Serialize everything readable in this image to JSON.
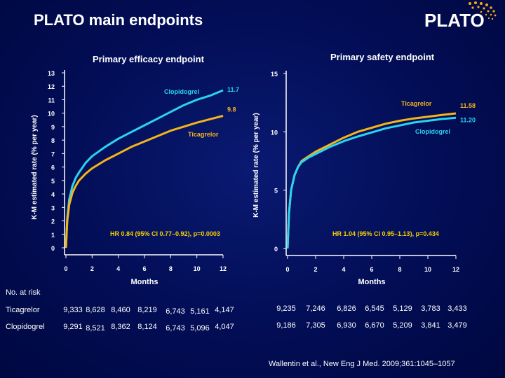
{
  "slide": {
    "title": "PLATO main endpoints",
    "logo_text": "PLATO",
    "citation": "Wallentin et al., New Eng J Med. 2009;361:1045–1057"
  },
  "colors": {
    "ticagrelor": "#f4b41a",
    "clopidogrel": "#2ad4f0",
    "hr_text": "#f4d000",
    "logo_dots": "#f4a81a"
  },
  "chart_data": [
    {
      "type": "line",
      "title": "Primary efficacy endpoint",
      "xlabel": "Months",
      "ylabel": "K-M estimated rate  (% per year)",
      "xlim": [
        0,
        12
      ],
      "ylim": [
        0,
        13
      ],
      "xticks": [
        0,
        2,
        4,
        6,
        8,
        10,
        12
      ],
      "yticks": [
        0,
        1,
        2,
        3,
        4,
        5,
        6,
        7,
        8,
        9,
        10,
        11,
        12,
        13
      ],
      "grid": false,
      "annotation": "HR 0.84 (95% CI 0.77–0.92), p=0.0003",
      "series": [
        {
          "name": "Clopidogrel",
          "end_label": "11.7",
          "color": "#2ad4f0",
          "x": [
            0,
            0.1,
            0.25,
            0.5,
            0.75,
            1,
            1.5,
            2,
            3,
            4,
            5,
            6,
            7,
            8,
            9,
            10,
            11,
            12
          ],
          "y": [
            0,
            2.2,
            3.6,
            4.6,
            5.2,
            5.6,
            6.3,
            6.8,
            7.5,
            8.1,
            8.6,
            9.1,
            9.6,
            10.1,
            10.6,
            11.0,
            11.3,
            11.7
          ]
        },
        {
          "name": "Ticagrelor",
          "end_label": "9.8",
          "color": "#f4b41a",
          "x": [
            0,
            0.1,
            0.25,
            0.5,
            0.75,
            1,
            1.5,
            2,
            3,
            4,
            5,
            6,
            7,
            8,
            9,
            10,
            11,
            12
          ],
          "y": [
            0,
            2.0,
            3.2,
            4.1,
            4.6,
            5.0,
            5.5,
            5.9,
            6.5,
            7.0,
            7.5,
            7.9,
            8.3,
            8.7,
            9.0,
            9.3,
            9.55,
            9.8
          ]
        }
      ]
    },
    {
      "type": "line",
      "title": "Primary safety endpoint",
      "xlabel": "Months",
      "ylabel": "K-M estimated rate  (% per year)",
      "xlim": [
        0,
        12
      ],
      "ylim": [
        0,
        15
      ],
      "xticks": [
        0,
        2,
        4,
        6,
        8,
        10,
        12
      ],
      "yticks": [
        0,
        5,
        10,
        15
      ],
      "grid": false,
      "annotation": "HR 1.04 (95% CI 0.95–1.13), p=0.434",
      "series": [
        {
          "name": "Ticagrelor",
          "end_label": "11.58",
          "color": "#f4b41a",
          "x": [
            0,
            0.1,
            0.25,
            0.5,
            0.75,
            1,
            1.5,
            2,
            3,
            4,
            5,
            6,
            7,
            8,
            9,
            10,
            11,
            12
          ],
          "y": [
            0,
            3.0,
            5.0,
            6.3,
            7.0,
            7.5,
            7.9,
            8.3,
            8.9,
            9.5,
            10.0,
            10.35,
            10.7,
            10.95,
            11.15,
            11.3,
            11.45,
            11.58
          ]
        },
        {
          "name": "Clopidogrel",
          "end_label": "11.20",
          "color": "#2ad4f0",
          "x": [
            0,
            0.1,
            0.25,
            0.5,
            0.75,
            1,
            1.5,
            2,
            3,
            4,
            5,
            6,
            7,
            8,
            9,
            10,
            11,
            12
          ],
          "y": [
            0,
            3.0,
            5.0,
            6.3,
            7.0,
            7.4,
            7.8,
            8.1,
            8.7,
            9.2,
            9.6,
            9.95,
            10.3,
            10.55,
            10.8,
            10.95,
            11.1,
            11.2
          ]
        }
      ]
    }
  ],
  "risk_table": {
    "header": "No. at risk",
    "rows": [
      {
        "label": "Ticagrelor",
        "left": [
          "9,333",
          "8,628",
          "8,460",
          "8,219",
          "6,743",
          "5,161",
          "4,147"
        ],
        "right": [
          "9,235",
          "7,246",
          "6,826",
          "6,545",
          "5,129",
          "3,783",
          "3,433"
        ]
      },
      {
        "label": "Clopidogrel",
        "left": [
          "9,291",
          "8,521",
          "8,362",
          "8,124",
          "6,743",
          "5,096",
          "4,047"
        ],
        "right": [
          "9,186",
          "7,305",
          "6,930",
          "6,670",
          "5,209",
          "3,841",
          "3,479"
        ]
      }
    ]
  }
}
